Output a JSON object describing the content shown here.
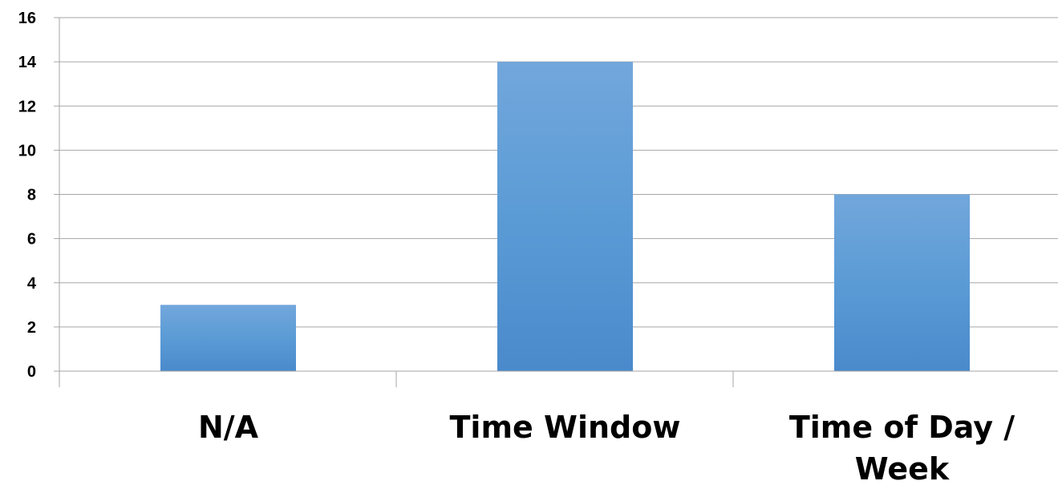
{
  "chart_data": {
    "type": "bar",
    "categories": [
      "N/A",
      "Time Window",
      "Time of Day / Week"
    ],
    "category_label_lines": [
      [
        "N/A"
      ],
      [
        "Time Window"
      ],
      [
        "Time of Day /",
        "Week"
      ]
    ],
    "values": [
      3,
      14,
      8
    ],
    "ylim": [
      0,
      16
    ],
    "yticks": [
      "0",
      "2",
      "4",
      "6",
      "8",
      "10",
      "12",
      "14",
      "16"
    ],
    "title": "",
    "xlabel": "",
    "ylabel": "",
    "grid": true,
    "legend": "none",
    "colors": {
      "bar_top": "#72A7DC",
      "bar_mid": "#5B9BD5",
      "bar_bottom": "#4A8ACC",
      "grid": "#A6A6A6",
      "axis": "#A6A6A6"
    }
  }
}
